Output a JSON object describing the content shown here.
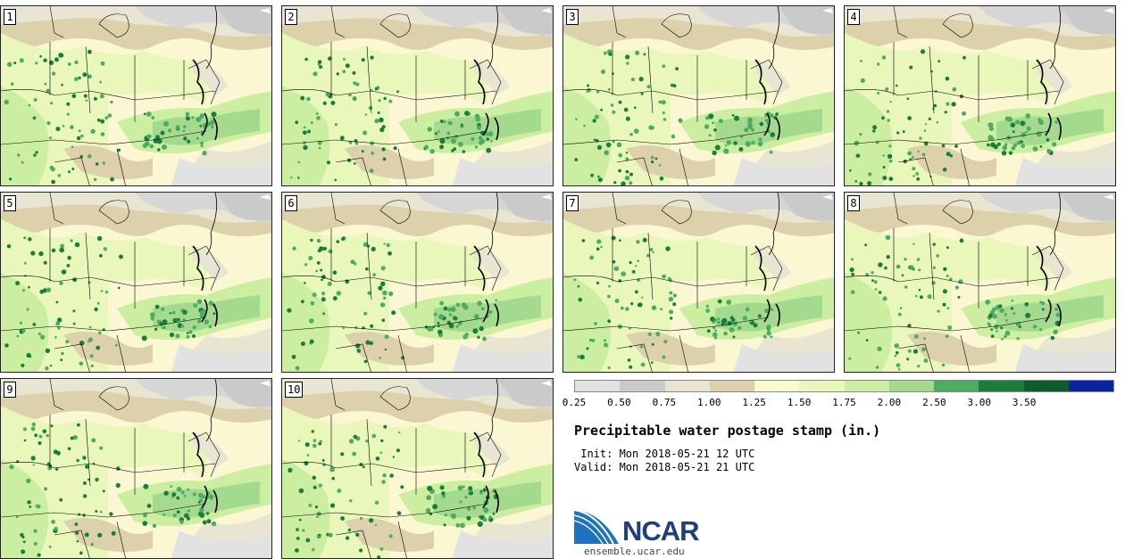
{
  "members": [
    "1",
    "2",
    "3",
    "4",
    "5",
    "6",
    "7",
    "8",
    "9",
    "10"
  ],
  "colorbar": {
    "colors": [
      "#e2e2e2",
      "#cacaca",
      "#e8e6d2",
      "#ddd1ab",
      "#fafad0",
      "#e9f7ba",
      "#cbeea0",
      "#a4da8e",
      "#4eac62",
      "#1a7d3c",
      "#0e5c2c",
      "#0b24a5"
    ],
    "labels": [
      "0.25",
      "0.50",
      "0.75",
      "1.00",
      "1.25",
      "1.50",
      "1.75",
      "2.00",
      "2.50",
      "3.00",
      "3.50"
    ]
  },
  "title": "Precipitable water postage stamp (in.)",
  "init": " Init: Mon 2018-05-21 12 UTC",
  "valid": "Valid: Mon 2018-05-21 21 UTC",
  "logo": {
    "text": "NCAR",
    "url": "ensemble.ucar.edu"
  }
}
